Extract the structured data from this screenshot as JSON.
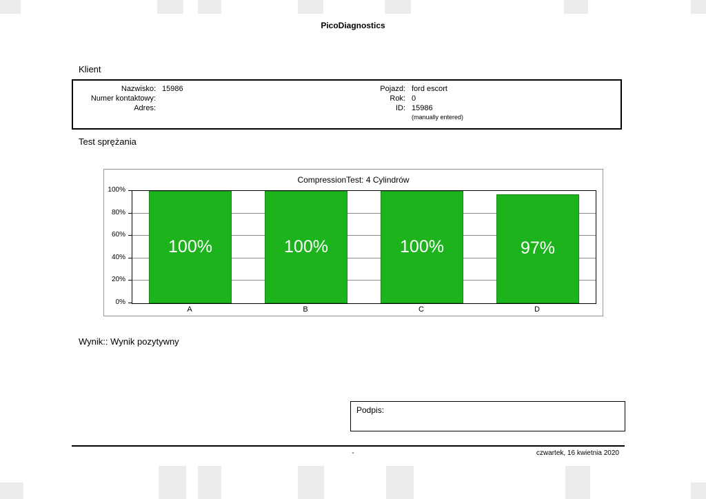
{
  "report": {
    "title": "PicoDiagnostics",
    "client_section_title": "Klient",
    "test_section_title": "Test sprężania",
    "result_text": "Wynik:: Wynik pozytywny",
    "signature_label": "Podpis:",
    "footer_center": "-",
    "footer_date": "czwartek, 16 kwietnia 2020"
  },
  "client": {
    "left_fields": [
      {
        "label": "Nazwisko:",
        "value": "15986"
      },
      {
        "label": "Numer kontaktowy:",
        "value": ""
      },
      {
        "label": "Adres:",
        "value": ""
      }
    ],
    "right_fields": [
      {
        "label": "Pojazd:",
        "value": "ford escort"
      },
      {
        "label": "Rok:",
        "value": "0"
      },
      {
        "label": "ID:",
        "value": "15986"
      }
    ],
    "id_note": "(manually entered)"
  },
  "chart_data": {
    "type": "bar",
    "title": "CompressionTest: 4 Cylindrów",
    "categories": [
      "A",
      "B",
      "C",
      "D"
    ],
    "values": [
      100,
      100,
      100,
      97
    ],
    "bar_labels": [
      "100%",
      "100%",
      "100%",
      "97%"
    ],
    "xlabel": "",
    "ylabel": "",
    "ylim": [
      0,
      100
    ],
    "y_ticks": [
      0,
      20,
      40,
      60,
      80,
      100
    ],
    "y_tick_labels": [
      "0%",
      "20%",
      "40%",
      "60%",
      "80%",
      "100%"
    ],
    "grid": true,
    "legend": false,
    "bar_color": "#1db31d",
    "bar_label_color": "#ffffff"
  }
}
